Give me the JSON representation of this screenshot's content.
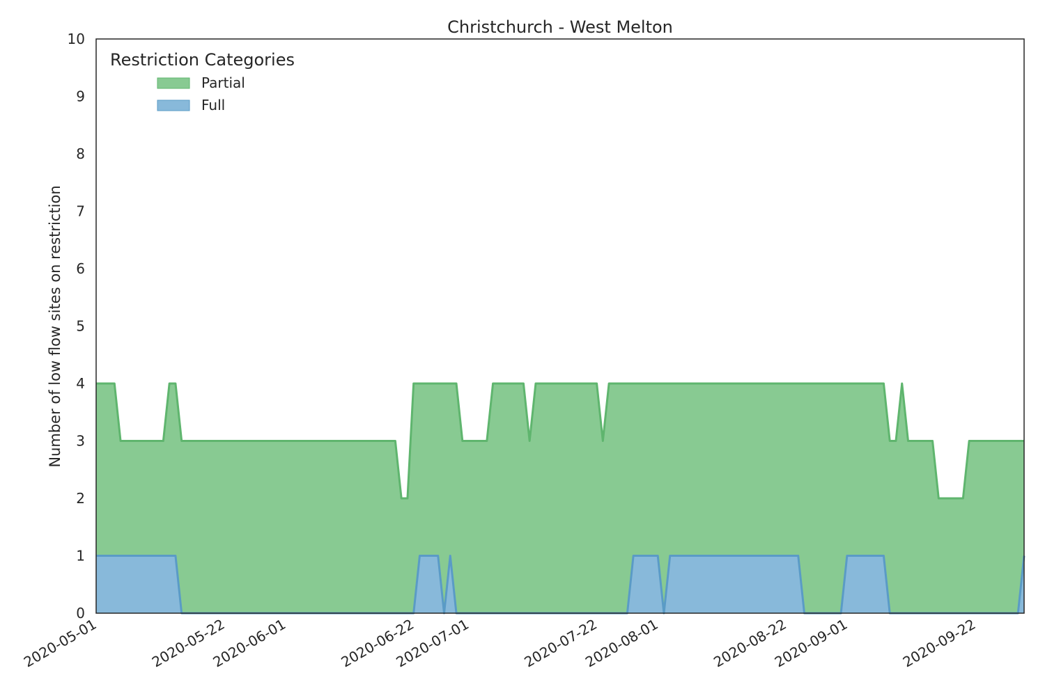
{
  "chart_data": {
    "type": "area",
    "title": "Christchurch - West Melton",
    "xlabel": "",
    "ylabel": "Number of low flow sites on restriction",
    "ylim": [
      0,
      10
    ],
    "xlim": [
      "2020-05-01",
      "2020-09-30"
    ],
    "yticks": [
      "0",
      "1",
      "2",
      "3",
      "4",
      "5",
      "6",
      "7",
      "8",
      "9",
      "10"
    ],
    "xticks": [
      "2020-05-01",
      "2020-05-22",
      "2020-06-01",
      "2020-06-22",
      "2020-07-01",
      "2020-07-22",
      "2020-08-01",
      "2020-08-22",
      "2020-09-01",
      "2020-09-22"
    ],
    "grid": false,
    "stacked": true,
    "legend": {
      "title": "Restriction Categories",
      "placement": "top-left",
      "entries": [
        "Partial",
        "Full"
      ]
    },
    "colors": {
      "Partial": "#88ca92",
      "Partial_line": "#5fb56e",
      "Full": "#88b9da",
      "Full_line": "#5a9bc6"
    },
    "series": [
      {
        "name": "Partial",
        "points": [
          [
            "2020-05-01",
            4
          ],
          [
            "2020-05-04",
            4
          ],
          [
            "2020-05-05",
            3
          ],
          [
            "2020-05-12",
            3
          ],
          [
            "2020-05-13",
            4
          ],
          [
            "2020-05-14",
            4
          ],
          [
            "2020-05-15",
            3
          ],
          [
            "2020-06-19",
            3
          ],
          [
            "2020-06-20",
            2
          ],
          [
            "2020-06-21",
            2
          ],
          [
            "2020-06-22",
            4
          ],
          [
            "2020-06-29",
            4
          ],
          [
            "2020-06-30",
            3
          ],
          [
            "2020-07-04",
            3
          ],
          [
            "2020-07-05",
            4
          ],
          [
            "2020-07-10",
            4
          ],
          [
            "2020-07-11",
            3
          ],
          [
            "2020-07-12",
            4
          ],
          [
            "2020-07-22",
            4
          ],
          [
            "2020-07-23",
            3
          ],
          [
            "2020-07-24",
            4
          ],
          [
            "2020-09-07",
            4
          ],
          [
            "2020-09-08",
            3
          ],
          [
            "2020-09-09",
            3
          ],
          [
            "2020-09-10",
            4
          ],
          [
            "2020-09-11",
            3
          ],
          [
            "2020-09-15",
            3
          ],
          [
            "2020-09-16",
            2
          ],
          [
            "2020-09-20",
            2
          ],
          [
            "2020-09-21",
            3
          ],
          [
            "2020-09-30",
            3
          ]
        ]
      },
      {
        "name": "Full",
        "points": [
          [
            "2020-05-01",
            1
          ],
          [
            "2020-05-14",
            1
          ],
          [
            "2020-05-15",
            0
          ],
          [
            "2020-06-22",
            0
          ],
          [
            "2020-06-23",
            1
          ],
          [
            "2020-06-26",
            1
          ],
          [
            "2020-06-27",
            0
          ],
          [
            "2020-06-28",
            1
          ],
          [
            "2020-06-29",
            0
          ],
          [
            "2020-07-27",
            0
          ],
          [
            "2020-07-28",
            1
          ],
          [
            "2020-08-01",
            1
          ],
          [
            "2020-08-02",
            0
          ],
          [
            "2020-08-03",
            1
          ],
          [
            "2020-08-24",
            1
          ],
          [
            "2020-08-25",
            0
          ],
          [
            "2020-08-31",
            0
          ],
          [
            "2020-09-01",
            1
          ],
          [
            "2020-09-07",
            1
          ],
          [
            "2020-09-08",
            0
          ],
          [
            "2020-09-29",
            0
          ],
          [
            "2020-09-30",
            1
          ]
        ]
      }
    ]
  }
}
